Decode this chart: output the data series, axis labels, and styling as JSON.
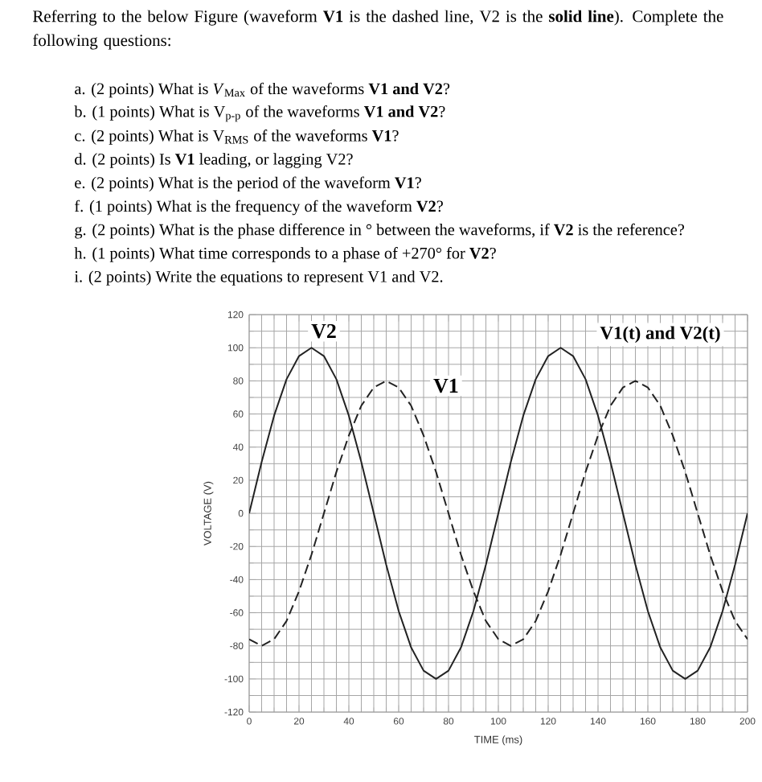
{
  "chart_data": {
    "type": "line",
    "title": "V1(t) and V2(t)",
    "xlabel": "TIME (ms)",
    "ylabel": "VOLTAGE (V)",
    "annotations": [
      "Referring to the below Figure (waveform **V1** is the dashed line, V2 is the **solid line**). Complete the following questions:",
      "a.  (2 points) What is *V*$_{Max}$ of the waveforms **V1 and V2**?",
      "b.  (1 points) What is V$_{p-p}$ of the waveforms **V1 and V2**?",
      "c.  (2 points) What is V$_{RMS}$ of the waveforms **V1**?",
      "d.  (2 points) Is **V1** leading, or lagging V2?",
      "e.  (2 points) What is the period of the waveform **V1**?",
      "f.  (1 points) What is the frequency of the waveform **V2**?",
      "g.  (2 points) What is the phase difference in ° between the waveforms, if **V2** is the reference?",
      "h.  (1 points) What time corresponds to a phase of +270° for **V2**?",
      "i.  (2 points) Write the equations to represent V1 and V2."
    ],
    "x": [
      0,
      5,
      10,
      15,
      20,
      25,
      30,
      35,
      40,
      45,
      50,
      55,
      60,
      65,
      70,
      75,
      80,
      85,
      90,
      95,
      100,
      105,
      110,
      115,
      120,
      125,
      130,
      135,
      140,
      145,
      150,
      155,
      160,
      165,
      170,
      175,
      180,
      185,
      190,
      195,
      200
    ],
    "series": [
      {
        "name": "V2",
        "color": "#222222",
        "line_style": "solid",
        "values": [
          0,
          31,
          59,
          81,
          95,
          100,
          95,
          81,
          59,
          31,
          0,
          -31,
          -59,
          -81,
          -95,
          -100,
          -95,
          -81,
          -59,
          -31,
          0,
          31,
          59,
          81,
          95,
          100,
          95,
          81,
          59,
          31,
          0,
          -31,
          -59,
          -81,
          -95,
          -100,
          -95,
          -81,
          -59,
          -31,
          0
        ]
      },
      {
        "name": "V1",
        "color": "#222222",
        "line_style": "dashed",
        "values": [
          -76,
          -80,
          -76,
          -65,
          -47,
          -25,
          0,
          25,
          47,
          65,
          76,
          80,
          76,
          65,
          47,
          25,
          0,
          -25,
          -47,
          -65,
          -76,
          -80,
          -76,
          -65,
          -47,
          -25,
          0,
          25,
          47,
          65,
          76,
          80,
          76,
          65,
          47,
          25,
          0,
          -25,
          -47,
          -65,
          -76
        ]
      }
    ],
    "xlim": [
      0,
      200
    ],
    "ylim": [
      -120,
      120
    ],
    "xticks": [
      0,
      20,
      40,
      60,
      80,
      100,
      120,
      140,
      160,
      180,
      200
    ],
    "yticks": [
      -120,
      -100,
      -80,
      -60,
      -40,
      -20,
      0,
      20,
      40,
      60,
      80,
      100,
      120
    ],
    "grid": true,
    "legend": false,
    "marker": "none"
  }
}
